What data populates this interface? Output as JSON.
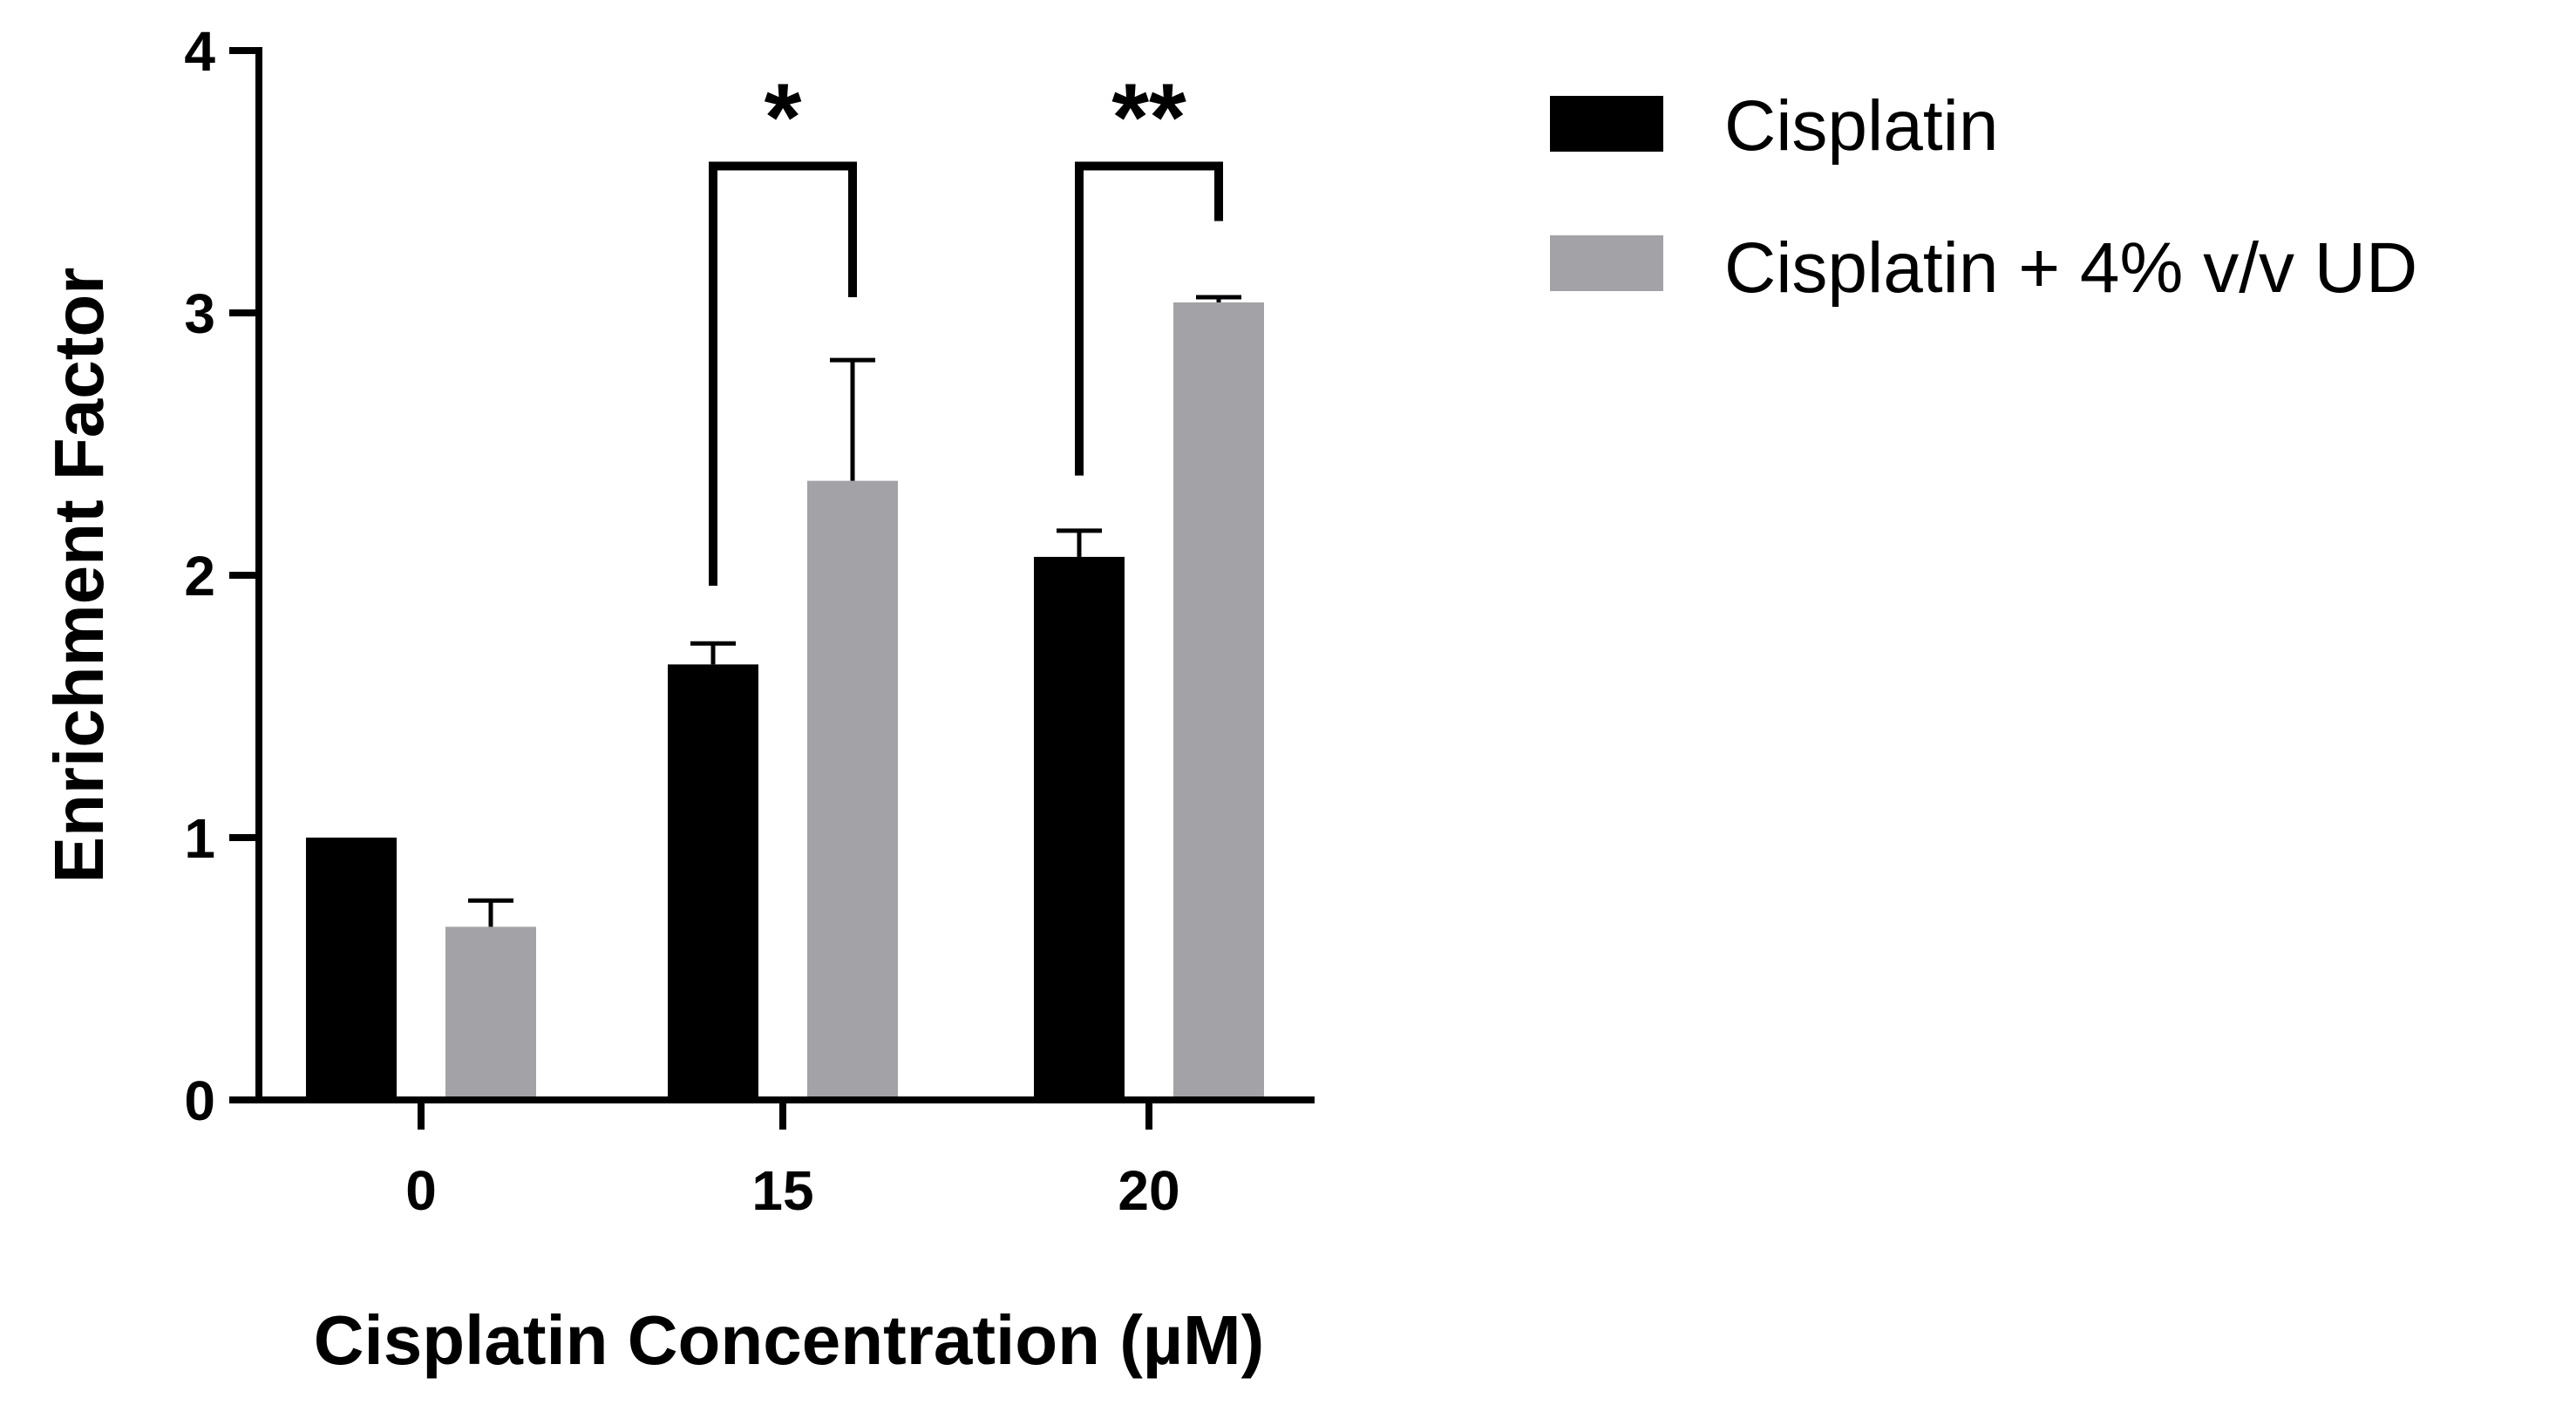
{
  "chart_data": {
    "type": "bar",
    "title": "",
    "xlabel": "Cisplatin Concentration (µM)",
    "ylabel": "Enrichment Factor",
    "ylim": [
      0,
      4
    ],
    "yticks": [
      "0",
      "1",
      "2",
      "3",
      "4"
    ],
    "categories": [
      "0",
      "15",
      "20"
    ],
    "series": [
      {
        "name": "Cisplatin",
        "color": "#000000",
        "values": [
          1.0,
          1.66,
          2.07
        ],
        "errors": [
          0.0,
          0.08,
          0.1
        ]
      },
      {
        "name": "Cisplatin + 4% v/v UD",
        "color": "#a3a2a7",
        "values": [
          0.66,
          2.36,
          3.04
        ],
        "errors": [
          0.1,
          0.46,
          0.02
        ]
      }
    ],
    "annotations": [
      {
        "category": "15",
        "label": "*",
        "bracket_left": 1.96,
        "bracket_right": 3.06,
        "bracket_top": 3.56
      },
      {
        "category": "20",
        "label": "**",
        "bracket_left": 2.38,
        "bracket_right": 3.35,
        "bracket_top": 3.56
      }
    ],
    "legend_position": "top-right",
    "grid": false
  }
}
